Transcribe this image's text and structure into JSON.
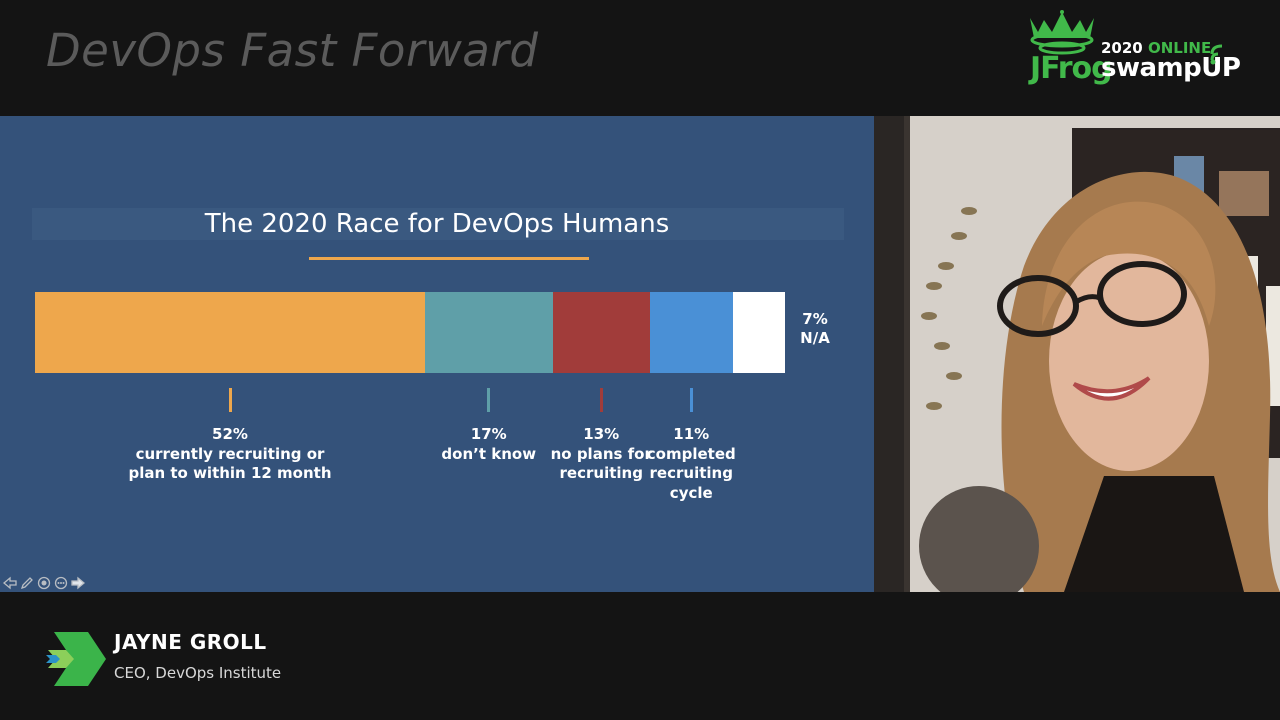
{
  "session": {
    "title": "DevOps Fast Forward"
  },
  "brand": {
    "company": "JFrog",
    "year": "2020",
    "edition": "ONLINE",
    "event": "swampUP"
  },
  "slide": {
    "title": "The 2020 Race for DevOps Humans",
    "chart_data": {
      "type": "bar",
      "orientation": "horizontal-stacked",
      "title": "The 2020 Race for DevOps Humans",
      "categories": [
        "currently recruiting or plan to within 12 month",
        "don’t know",
        "no plans for recruiting",
        "completed recruiting cycle",
        "N/A"
      ],
      "values": [
        52,
        17,
        13,
        11,
        7
      ],
      "units": "%",
      "colors": [
        "#eea74c",
        "#5f9fa8",
        "#a13c3a",
        "#4a90d6",
        "#ffffff"
      ],
      "segments": [
        {
          "pct": "52%",
          "lines": [
            "currently recruiting or",
            "plan to within 12 month"
          ]
        },
        {
          "pct": "17%",
          "lines": [
            "don’t know"
          ]
        },
        {
          "pct": "13%",
          "lines": [
            "no plans for",
            "recruiting"
          ]
        },
        {
          "pct": "11%",
          "lines": [
            "completed",
            "recruiting",
            "cycle"
          ]
        },
        {
          "pct": "7%",
          "lines": [
            "N/A"
          ]
        }
      ]
    }
  },
  "speaker": {
    "name": "JAYNE GROLL",
    "role": "CEO, DevOps Institute"
  },
  "icons": {
    "brand": "frog-crown-icon",
    "controls": [
      "arrow-left-icon",
      "pen-icon",
      "circle-menu-icon",
      "circle-options-icon",
      "arrow-right-icon"
    ],
    "speaker": "devops-chevron-icon"
  }
}
